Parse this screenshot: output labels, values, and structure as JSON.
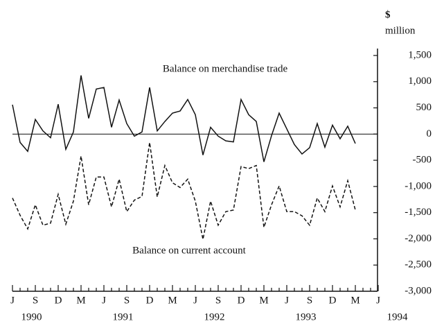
{
  "chart_data": {
    "type": "line",
    "y_unit": "$",
    "y_unit_2": "million",
    "annotations": [
      "Balance on merchandise trade",
      "Balance on current account"
    ],
    "categories": [
      "J",
      null,
      null,
      "S",
      null,
      null,
      "D",
      null,
      null,
      "M",
      null,
      null,
      "J",
      null,
      null,
      "S",
      null,
      null,
      "D",
      null,
      null,
      "M",
      null,
      null,
      "J",
      null,
      null,
      "S",
      null,
      null,
      "D",
      null,
      null,
      "M",
      null,
      null,
      "J",
      null,
      null,
      "S",
      null,
      null,
      "D",
      null,
      null,
      "M",
      null,
      null,
      "J"
    ],
    "year_labels": [
      "1990",
      "1991",
      "1992",
      "1993",
      "1994"
    ],
    "series": [
      {
        "name": "Balance on merchandise trade",
        "color": "#111111",
        "dash": false,
        "values": [
          560,
          -160,
          -330,
          280,
          60,
          -70,
          570,
          -290,
          40,
          1120,
          300,
          860,
          890,
          130,
          650,
          200,
          -40,
          40,
          890,
          60,
          240,
          400,
          440,
          660,
          370,
          -400,
          130,
          -40,
          -130,
          -150,
          660,
          370,
          240,
          -530,
          -30,
          400,
          100,
          -200,
          -380,
          -260,
          200,
          -250,
          170,
          -90,
          150,
          -180,
          null,
          null,
          null
        ]
      },
      {
        "name": "Balance on current account",
        "color": "#111111",
        "dash": true,
        "values": [
          -1220,
          -1550,
          -1810,
          -1350,
          -1740,
          -1700,
          -1150,
          -1720,
          -1280,
          -420,
          -1350,
          -820,
          -820,
          -1390,
          -860,
          -1480,
          -1260,
          -1190,
          -160,
          -1200,
          -600,
          -930,
          -1020,
          -860,
          -1280,
          -2010,
          -1280,
          -1740,
          -1480,
          -1450,
          -620,
          -660,
          -600,
          -1780,
          -1350,
          -990,
          -1480,
          -1480,
          -1560,
          -1740,
          -1220,
          -1480,
          -990,
          -1390,
          -890,
          -1450,
          null,
          null,
          null
        ]
      }
    ],
    "ylim": [
      -3000,
      1500
    ],
    "yticks": [
      {
        "value": -3000,
        "label": "-3,000"
      },
      {
        "value": -2500,
        "label": "-2,500"
      },
      {
        "value": -2000,
        "label": "-2,000"
      },
      {
        "value": -1500,
        "label": "-1,500"
      },
      {
        "value": -1000,
        "label": "-1,000"
      },
      -500,
      0,
      500,
      {
        "value": 1000,
        "label": "1,000"
      },
      {
        "value": 1500,
        "label": "1,500"
      }
    ],
    "zero_line": true
  }
}
